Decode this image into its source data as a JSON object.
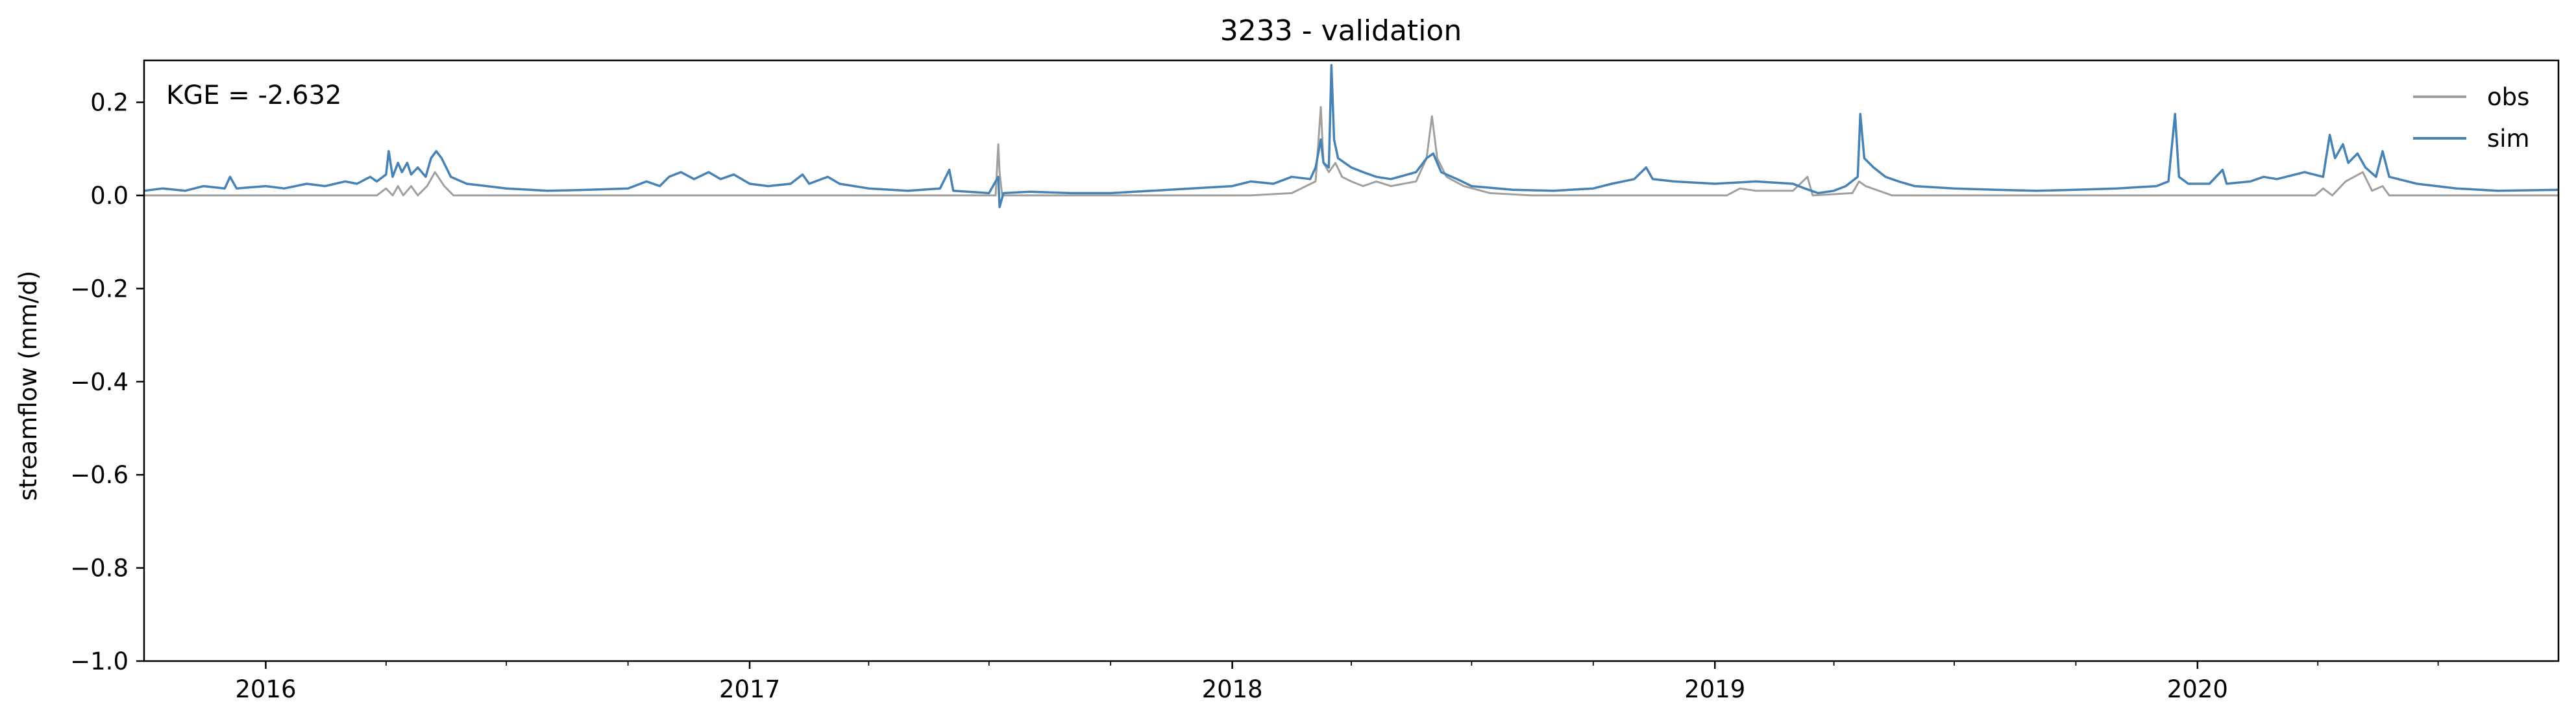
{
  "chart_data": {
    "type": "line",
    "title": "3233 - validation",
    "xlabel": "",
    "ylabel": "streamflow (mm/d)",
    "annotation": "KGE = -2.632",
    "xlim": [
      "2015-10-01",
      "2020-09-30"
    ],
    "ylim": [
      -1.0,
      0.29
    ],
    "x_ticks": [
      "2016",
      "2017",
      "2018",
      "2019",
      "2020"
    ],
    "y_ticks": [
      "0.2",
      "0.0",
      "−0.2",
      "−0.4",
      "−0.6",
      "−0.8",
      "−1.0"
    ],
    "y_tick_values": [
      0.2,
      0.0,
      -0.2,
      -0.4,
      -0.6,
      -0.8,
      -1.0
    ],
    "grid": false,
    "legend_position": "top-right",
    "series": [
      {
        "name": "obs",
        "color": "#a0a0a0",
        "points": [
          [
            "2015-10-01",
            0.0
          ],
          [
            "2016-03-25",
            0.0
          ],
          [
            "2016-04-01",
            0.015
          ],
          [
            "2016-04-06",
            0.0
          ],
          [
            "2016-04-10",
            0.02
          ],
          [
            "2016-04-14",
            0.0
          ],
          [
            "2016-04-20",
            0.02
          ],
          [
            "2016-04-25",
            0.0
          ],
          [
            "2016-05-02",
            0.02
          ],
          [
            "2016-05-08",
            0.05
          ],
          [
            "2016-05-15",
            0.02
          ],
          [
            "2016-05-22",
            0.0
          ],
          [
            "2017-07-06",
            0.0
          ],
          [
            "2017-07-08",
            0.11
          ],
          [
            "2017-07-09",
            0.05
          ],
          [
            "2017-07-11",
            0.0
          ],
          [
            "2018-01-15",
            0.0
          ],
          [
            "2018-02-15",
            0.005
          ],
          [
            "2018-03-05",
            0.03
          ],
          [
            "2018-03-09",
            0.19
          ],
          [
            "2018-03-11",
            0.07
          ],
          [
            "2018-03-15",
            0.05
          ],
          [
            "2018-03-20",
            0.07
          ],
          [
            "2018-03-25",
            0.04
          ],
          [
            "2018-04-01",
            0.03
          ],
          [
            "2018-04-10",
            0.02
          ],
          [
            "2018-04-20",
            0.03
          ],
          [
            "2018-05-01",
            0.02
          ],
          [
            "2018-05-20",
            0.03
          ],
          [
            "2018-05-28",
            0.08
          ],
          [
            "2018-06-01",
            0.17
          ],
          [
            "2018-06-05",
            0.08
          ],
          [
            "2018-06-12",
            0.04
          ],
          [
            "2018-06-25",
            0.02
          ],
          [
            "2018-07-15",
            0.005
          ],
          [
            "2018-08-15",
            0.0
          ],
          [
            "2019-01-10",
            0.0
          ],
          [
            "2019-01-20",
            0.015
          ],
          [
            "2019-02-01",
            0.01
          ],
          [
            "2019-03-01",
            0.01
          ],
          [
            "2019-03-12",
            0.04
          ],
          [
            "2019-03-16",
            0.0
          ],
          [
            "2019-04-15",
            0.005
          ],
          [
            "2019-04-20",
            0.03
          ],
          [
            "2019-04-25",
            0.02
          ],
          [
            "2019-05-05",
            0.01
          ],
          [
            "2019-05-15",
            0.0
          ],
          [
            "2020-03-30",
            0.0
          ],
          [
            "2020-04-05",
            0.015
          ],
          [
            "2020-04-12",
            0.0
          ],
          [
            "2020-04-22",
            0.03
          ],
          [
            "2020-05-05",
            0.05
          ],
          [
            "2020-05-12",
            0.01
          ],
          [
            "2020-05-20",
            0.02
          ],
          [
            "2020-05-25",
            0.0
          ],
          [
            "2020-09-30",
            0.0
          ]
        ]
      },
      {
        "name": "sim",
        "color": "#4682b4",
        "points": [
          [
            "2015-10-01",
            0.01
          ],
          [
            "2015-10-15",
            0.015
          ],
          [
            "2015-11-01",
            0.01
          ],
          [
            "2015-11-15",
            0.02
          ],
          [
            "2015-12-01",
            0.015
          ],
          [
            "2015-12-05",
            0.04
          ],
          [
            "2015-12-10",
            0.015
          ],
          [
            "2016-01-01",
            0.02
          ],
          [
            "2016-01-15",
            0.015
          ],
          [
            "2016-02-01",
            0.025
          ],
          [
            "2016-02-15",
            0.02
          ],
          [
            "2016-03-01",
            0.03
          ],
          [
            "2016-03-10",
            0.025
          ],
          [
            "2016-03-20",
            0.04
          ],
          [
            "2016-03-25",
            0.03
          ],
          [
            "2016-04-01",
            0.045
          ],
          [
            "2016-04-03",
            0.095
          ],
          [
            "2016-04-06",
            0.04
          ],
          [
            "2016-04-10",
            0.07
          ],
          [
            "2016-04-13",
            0.05
          ],
          [
            "2016-04-17",
            0.07
          ],
          [
            "2016-04-20",
            0.045
          ],
          [
            "2016-04-25",
            0.06
          ],
          [
            "2016-05-01",
            0.04
          ],
          [
            "2016-05-05",
            0.08
          ],
          [
            "2016-05-09",
            0.095
          ],
          [
            "2016-05-13",
            0.08
          ],
          [
            "2016-05-20",
            0.04
          ],
          [
            "2016-06-01",
            0.025
          ],
          [
            "2016-07-01",
            0.015
          ],
          [
            "2016-08-01",
            0.01
          ],
          [
            "2016-09-01",
            0.012
          ],
          [
            "2016-10-01",
            0.015
          ],
          [
            "2016-10-15",
            0.03
          ],
          [
            "2016-10-25",
            0.02
          ],
          [
            "2016-11-01",
            0.04
          ],
          [
            "2016-11-10",
            0.05
          ],
          [
            "2016-11-20",
            0.035
          ],
          [
            "2016-12-01",
            0.05
          ],
          [
            "2016-12-10",
            0.035
          ],
          [
            "2016-12-20",
            0.045
          ],
          [
            "2017-01-01",
            0.025
          ],
          [
            "2017-01-15",
            0.02
          ],
          [
            "2017-02-01",
            0.025
          ],
          [
            "2017-02-10",
            0.045
          ],
          [
            "2017-02-15",
            0.025
          ],
          [
            "2017-03-01",
            0.04
          ],
          [
            "2017-03-10",
            0.025
          ],
          [
            "2017-04-01",
            0.015
          ],
          [
            "2017-05-01",
            0.01
          ],
          [
            "2017-05-25",
            0.015
          ],
          [
            "2017-06-01",
            0.055
          ],
          [
            "2017-06-04",
            0.01
          ],
          [
            "2017-07-01",
            0.005
          ],
          [
            "2017-07-08",
            0.04
          ],
          [
            "2017-07-09",
            -0.025
          ],
          [
            "2017-07-12",
            0.005
          ],
          [
            "2017-08-01",
            0.008
          ],
          [
            "2017-09-01",
            0.005
          ],
          [
            "2017-10-01",
            0.005
          ],
          [
            "2017-11-01",
            0.01
          ],
          [
            "2017-12-01",
            0.015
          ],
          [
            "2018-01-01",
            0.02
          ],
          [
            "2018-01-15",
            0.03
          ],
          [
            "2018-02-01",
            0.025
          ],
          [
            "2018-02-15",
            0.04
          ],
          [
            "2018-03-01",
            0.035
          ],
          [
            "2018-03-05",
            0.06
          ],
          [
            "2018-03-09",
            0.12
          ],
          [
            "2018-03-11",
            0.07
          ],
          [
            "2018-03-15",
            0.06
          ],
          [
            "2018-03-17",
            0.28
          ],
          [
            "2018-03-19",
            0.12
          ],
          [
            "2018-03-22",
            0.08
          ],
          [
            "2018-04-01",
            0.06
          ],
          [
            "2018-04-10",
            0.05
          ],
          [
            "2018-04-20",
            0.04
          ],
          [
            "2018-05-01",
            0.035
          ],
          [
            "2018-05-20",
            0.05
          ],
          [
            "2018-05-28",
            0.08
          ],
          [
            "2018-06-02",
            0.09
          ],
          [
            "2018-06-08",
            0.05
          ],
          [
            "2018-06-20",
            0.035
          ],
          [
            "2018-07-01",
            0.02
          ],
          [
            "2018-08-01",
            0.012
          ],
          [
            "2018-09-01",
            0.01
          ],
          [
            "2018-10-01",
            0.015
          ],
          [
            "2018-10-15",
            0.025
          ],
          [
            "2018-11-01",
            0.035
          ],
          [
            "2018-11-10",
            0.06
          ],
          [
            "2018-11-15",
            0.035
          ],
          [
            "2018-12-01",
            0.03
          ],
          [
            "2019-01-01",
            0.025
          ],
          [
            "2019-02-01",
            0.03
          ],
          [
            "2019-03-01",
            0.025
          ],
          [
            "2019-03-10",
            0.015
          ],
          [
            "2019-03-20",
            0.005
          ],
          [
            "2019-04-01",
            0.01
          ],
          [
            "2019-04-10",
            0.02
          ],
          [
            "2019-04-19",
            0.04
          ],
          [
            "2019-04-21",
            0.175
          ],
          [
            "2019-04-24",
            0.08
          ],
          [
            "2019-05-01",
            0.06
          ],
          [
            "2019-05-10",
            0.04
          ],
          [
            "2019-05-20",
            0.03
          ],
          [
            "2019-06-01",
            0.02
          ],
          [
            "2019-07-01",
            0.015
          ],
          [
            "2019-08-01",
            0.012
          ],
          [
            "2019-09-01",
            0.01
          ],
          [
            "2019-10-01",
            0.012
          ],
          [
            "2019-11-01",
            0.015
          ],
          [
            "2019-12-01",
            0.02
          ],
          [
            "2019-12-10",
            0.03
          ],
          [
            "2019-12-15",
            0.175
          ],
          [
            "2019-12-18",
            0.04
          ],
          [
            "2019-12-25",
            0.025
          ],
          [
            "2020-01-10",
            0.025
          ],
          [
            "2020-01-20",
            0.055
          ],
          [
            "2020-01-23",
            0.025
          ],
          [
            "2020-02-10",
            0.03
          ],
          [
            "2020-02-20",
            0.04
          ],
          [
            "2020-03-01",
            0.035
          ],
          [
            "2020-03-15",
            0.045
          ],
          [
            "2020-03-22",
            0.05
          ],
          [
            "2020-04-05",
            0.04
          ],
          [
            "2020-04-10",
            0.13
          ],
          [
            "2020-04-14",
            0.08
          ],
          [
            "2020-04-20",
            0.11
          ],
          [
            "2020-04-24",
            0.07
          ],
          [
            "2020-05-01",
            0.09
          ],
          [
            "2020-05-07",
            0.06
          ],
          [
            "2020-05-15",
            0.04
          ],
          [
            "2020-05-20",
            0.095
          ],
          [
            "2020-05-25",
            0.04
          ],
          [
            "2020-06-15",
            0.025
          ],
          [
            "2020-07-15",
            0.015
          ],
          [
            "2020-08-15",
            0.01
          ],
          [
            "2020-09-30",
            0.012
          ]
        ]
      }
    ]
  },
  "legend": {
    "obs_label": "obs",
    "sim_label": "sim"
  }
}
